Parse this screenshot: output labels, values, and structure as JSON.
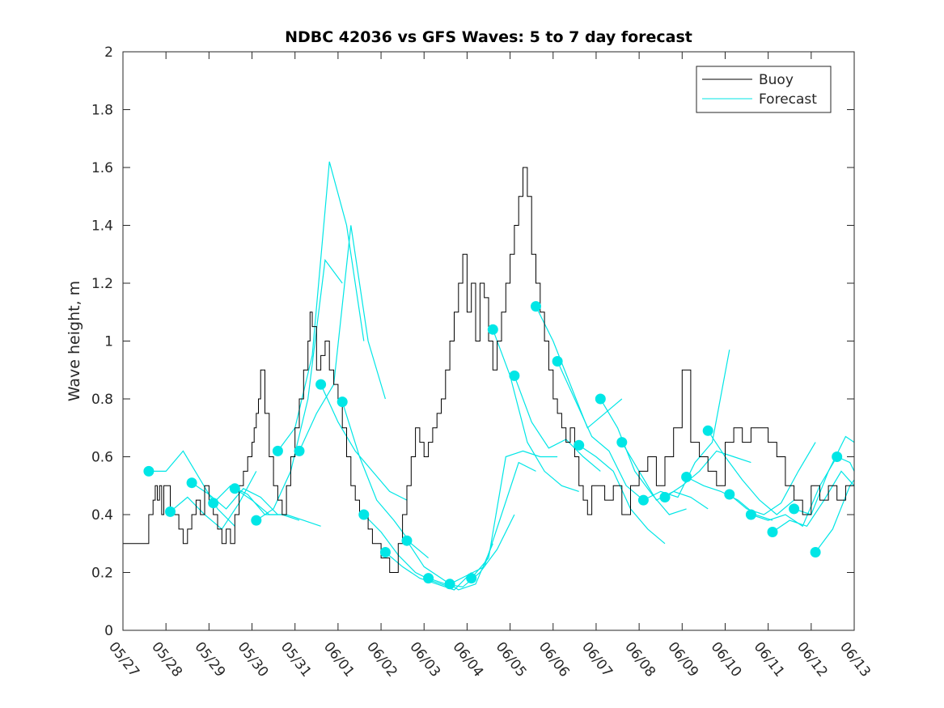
{
  "chart_data": {
    "type": "line",
    "title": "NDBC 42036 vs GFS Waves: 5 to 7 day forecast",
    "xlabel": "",
    "ylabel": "Wave height, m",
    "ylim": [
      0,
      2
    ],
    "yticks": [
      "0",
      "0.2",
      "0.4",
      "0.6",
      "0.8",
      "1",
      "1.2",
      "1.4",
      "1.6",
      "1.8",
      "2"
    ],
    "xticks": [
      "05/27",
      "05/28",
      "05/29",
      "05/30",
      "05/31",
      "06/01",
      "06/02",
      "06/03",
      "06/04",
      "06/05",
      "06/06",
      "06/07",
      "06/08",
      "06/09",
      "06/10",
      "06/11",
      "06/12",
      "06/13"
    ],
    "legend": {
      "placement": "top-right",
      "entries": [
        "Buoy",
        "Forecast"
      ]
    },
    "colors": {
      "buoy": "#000000",
      "forecast": "#00e6e6"
    },
    "buoy": {
      "name": "Buoy",
      "x": [
        0,
        0.55,
        0.6,
        0.7,
        0.75,
        0.8,
        0.85,
        0.9,
        0.95,
        1.0,
        1.1,
        1.2,
        1.3,
        1.4,
        1.5,
        1.6,
        1.7,
        1.8,
        1.9,
        2.0,
        2.1,
        2.2,
        2.3,
        2.4,
        2.5,
        2.6,
        2.7,
        2.8,
        2.9,
        3.0,
        3.05,
        3.1,
        3.15,
        3.2,
        3.3,
        3.4,
        3.5,
        3.6,
        3.7,
        3.8,
        3.9,
        4.0,
        4.1,
        4.2,
        4.3,
        4.35,
        4.4,
        4.5,
        4.6,
        4.7,
        4.8,
        4.9,
        5.0,
        5.1,
        5.2,
        5.3,
        5.4,
        5.5,
        5.6,
        5.7,
        5.8,
        6.0,
        6.2,
        6.4,
        6.5,
        6.6,
        6.7,
        6.8,
        6.9,
        7.0,
        7.1,
        7.2,
        7.3,
        7.4,
        7.5,
        7.6,
        7.7,
        7.8,
        7.9,
        8.0,
        8.1,
        8.2,
        8.3,
        8.4,
        8.5,
        8.6,
        8.7,
        8.8,
        8.9,
        9.0,
        9.1,
        9.2,
        9.3,
        9.4,
        9.5,
        9.6,
        9.7,
        9.8,
        9.9,
        10.0,
        10.1,
        10.2,
        10.3,
        10.4,
        10.5,
        10.6,
        10.7,
        10.8,
        10.9,
        11.0,
        11.2,
        11.4,
        11.6,
        11.8,
        12.0,
        12.2,
        12.4,
        12.6,
        12.8,
        13.0,
        13.2,
        13.4,
        13.6,
        13.8,
        14.0,
        14.2,
        14.4,
        14.6,
        14.8,
        15.0,
        15.2,
        15.4,
        15.6,
        15.8,
        16.0,
        16.2,
        16.4,
        16.6,
        16.8,
        17.0
      ],
      "y": [
        0.3,
        0.3,
        0.4,
        0.45,
        0.5,
        0.45,
        0.5,
        0.4,
        0.5,
        0.5,
        0.4,
        0.4,
        0.35,
        0.3,
        0.35,
        0.4,
        0.45,
        0.4,
        0.5,
        0.45,
        0.4,
        0.35,
        0.3,
        0.35,
        0.3,
        0.4,
        0.5,
        0.55,
        0.6,
        0.65,
        0.7,
        0.75,
        0.8,
        0.9,
        0.75,
        0.6,
        0.5,
        0.45,
        0.4,
        0.5,
        0.6,
        0.7,
        0.8,
        0.9,
        1.0,
        1.1,
        1.05,
        0.9,
        0.95,
        1.0,
        0.9,
        0.85,
        0.8,
        0.7,
        0.6,
        0.5,
        0.45,
        0.4,
        0.4,
        0.35,
        0.3,
        0.25,
        0.2,
        0.3,
        0.4,
        0.5,
        0.6,
        0.7,
        0.65,
        0.6,
        0.65,
        0.7,
        0.75,
        0.8,
        0.9,
        1.0,
        1.1,
        1.2,
        1.3,
        1.1,
        1.2,
        1.0,
        1.2,
        1.15,
        1.0,
        0.9,
        1.0,
        1.1,
        1.2,
        1.3,
        1.4,
        1.5,
        1.6,
        1.5,
        1.3,
        1.2,
        1.1,
        1.0,
        0.9,
        0.8,
        0.75,
        0.7,
        0.65,
        0.7,
        0.6,
        0.5,
        0.45,
        0.4,
        0.5,
        0.5,
        0.45,
        0.5,
        0.4,
        0.5,
        0.55,
        0.6,
        0.5,
        0.6,
        0.7,
        0.9,
        0.65,
        0.6,
        0.55,
        0.5,
        0.65,
        0.7,
        0.65,
        0.7,
        0.7,
        0.65,
        0.6,
        0.5,
        0.45,
        0.4,
        0.5,
        0.45,
        0.5,
        0.45,
        0.5,
        0.55
      ]
    },
    "forecast_series": [
      {
        "x": [
          0.6,
          1.0,
          1.4,
          1.8,
          2.2,
          2.6
        ],
        "y": [
          0.55,
          0.55,
          0.62,
          0.52,
          0.42,
          0.36
        ]
      },
      {
        "x": [
          1.1,
          1.5,
          1.9,
          2.3,
          2.7,
          3.1
        ],
        "y": [
          0.41,
          0.46,
          0.4,
          0.35,
          0.44,
          0.55
        ]
      },
      {
        "x": [
          1.6,
          2.0,
          2.4,
          2.8,
          3.2,
          3.6
        ],
        "y": [
          0.51,
          0.47,
          0.42,
          0.49,
          0.46,
          0.4
        ]
      },
      {
        "x": [
          2.1,
          2.5,
          2.9,
          3.3,
          3.7,
          4.1
        ],
        "y": [
          0.44,
          0.5,
          0.47,
          0.4,
          0.4,
          0.38
        ]
      },
      {
        "x": [
          2.6,
          3.0,
          3.4,
          3.8,
          4.2,
          4.6
        ],
        "y": [
          0.49,
          0.45,
          0.4,
          0.4,
          0.38,
          0.36
        ]
      },
      {
        "x": [
          3.1,
          3.5,
          3.9,
          4.3,
          4.7,
          5.1
        ],
        "y": [
          0.38,
          0.42,
          0.55,
          0.8,
          1.28,
          1.2
        ]
      },
      {
        "x": [
          3.6,
          4.0,
          4.4,
          4.8,
          5.2,
          5.6
        ],
        "y": [
          0.62,
          0.7,
          0.95,
          1.62,
          1.4,
          1.0
        ]
      },
      {
        "x": [
          4.1,
          4.5,
          4.9,
          5.3,
          5.7,
          6.1
        ],
        "y": [
          0.62,
          0.75,
          0.85,
          1.4,
          1.0,
          0.8
        ]
      },
      {
        "x": [
          4.6,
          5.0,
          5.4,
          5.8,
          6.2,
          6.6
        ],
        "y": [
          0.85,
          0.72,
          0.62,
          0.55,
          0.48,
          0.45
        ]
      },
      {
        "x": [
          5.1,
          5.5,
          5.9,
          6.3,
          6.7,
          7.1
        ],
        "y": [
          0.79,
          0.6,
          0.45,
          0.38,
          0.3,
          0.25
        ]
      },
      {
        "x": [
          5.6,
          6.0,
          6.4,
          6.8,
          7.2,
          7.6
        ],
        "y": [
          0.4,
          0.34,
          0.26,
          0.2,
          0.17,
          0.15
        ]
      },
      {
        "x": [
          6.1,
          6.5,
          6.9,
          7.3,
          7.7,
          8.1
        ],
        "y": [
          0.27,
          0.22,
          0.18,
          0.16,
          0.14,
          0.2
        ]
      },
      {
        "x": [
          6.6,
          7.0,
          7.4,
          7.8,
          8.2,
          8.6
        ],
        "y": [
          0.31,
          0.22,
          0.18,
          0.14,
          0.16,
          0.3
        ]
      },
      {
        "x": [
          7.1,
          7.5,
          7.9,
          8.3,
          8.7,
          9.1
        ],
        "y": [
          0.18,
          0.16,
          0.15,
          0.2,
          0.28,
          0.4
        ]
      },
      {
        "x": [
          7.6,
          8.0,
          8.4,
          8.8,
          9.2,
          9.6
        ],
        "y": [
          0.16,
          0.19,
          0.22,
          0.4,
          0.58,
          0.55
        ]
      },
      {
        "x": [
          8.1,
          8.5,
          8.9,
          9.3,
          9.7,
          10.1
        ],
        "y": [
          0.18,
          0.25,
          0.6,
          0.62,
          0.6,
          0.6
        ]
      },
      {
        "x": [
          8.6,
          9.0,
          9.4,
          9.8,
          10.2,
          10.6
        ],
        "y": [
          1.04,
          0.88,
          0.65,
          0.55,
          0.5,
          0.48
        ]
      },
      {
        "x": [
          9.1,
          9.5,
          9.9,
          10.3,
          10.7,
          11.1
        ],
        "y": [
          0.88,
          0.72,
          0.63,
          0.66,
          0.6,
          0.55
        ]
      },
      {
        "x": [
          9.6,
          10.0,
          10.4,
          10.8,
          11.2,
          11.6
        ],
        "y": [
          1.12,
          1.0,
          0.85,
          0.7,
          0.75,
          0.8
        ]
      },
      {
        "x": [
          10.1,
          10.5,
          10.9,
          11.3,
          11.7,
          12.1
        ],
        "y": [
          0.93,
          0.8,
          0.67,
          0.62,
          0.5,
          0.45
        ]
      },
      {
        "x": [
          10.6,
          11.0,
          11.4,
          11.8,
          12.2,
          12.6
        ],
        "y": [
          0.64,
          0.6,
          0.55,
          0.42,
          0.35,
          0.3
        ]
      },
      {
        "x": [
          11.1,
          11.5,
          11.9,
          12.3,
          12.7,
          13.1
        ],
        "y": [
          0.8,
          0.7,
          0.55,
          0.47,
          0.4,
          0.42
        ]
      },
      {
        "x": [
          11.6,
          12.0,
          12.4,
          12.8,
          13.2,
          13.6
        ],
        "y": [
          0.65,
          0.55,
          0.45,
          0.48,
          0.46,
          0.42
        ]
      },
      {
        "x": [
          12.1,
          12.5,
          12.9,
          13.3,
          13.7,
          14.1
        ],
        "y": [
          0.45,
          0.48,
          0.46,
          0.58,
          0.65,
          0.97
        ]
      },
      {
        "x": [
          12.6,
          13.0,
          13.4,
          13.8,
          14.2,
          14.6
        ],
        "y": [
          0.46,
          0.5,
          0.55,
          0.62,
          0.6,
          0.58
        ]
      },
      {
        "x": [
          13.1,
          13.5,
          13.9,
          14.3,
          14.7,
          15.1
        ],
        "y": [
          0.53,
          0.5,
          0.48,
          0.45,
          0.4,
          0.38
        ]
      },
      {
        "x": [
          13.6,
          14.0,
          14.4,
          14.8,
          15.2,
          15.6
        ],
        "y": [
          0.69,
          0.6,
          0.52,
          0.45,
          0.4,
          0.45
        ]
      },
      {
        "x": [
          14.1,
          14.5,
          14.9,
          15.3,
          15.7,
          16.1
        ],
        "y": [
          0.47,
          0.42,
          0.4,
          0.44,
          0.55,
          0.65
        ]
      },
      {
        "x": [
          14.6,
          15.0,
          15.4,
          15.8,
          16.2,
          16.6
        ],
        "y": [
          0.4,
          0.38,
          0.4,
          0.36,
          0.5,
          0.6
        ]
      },
      {
        "x": [
          15.1,
          15.5,
          15.9,
          16.3,
          16.7,
          17.0
        ],
        "y": [
          0.34,
          0.38,
          0.36,
          0.45,
          0.55,
          0.5
        ]
      },
      {
        "x": [
          15.6,
          16.0,
          16.4,
          16.8,
          17.0
        ],
        "y": [
          0.42,
          0.4,
          0.55,
          0.67,
          0.65
        ]
      },
      {
        "x": [
          16.1,
          16.5,
          16.9,
          17.0
        ],
        "y": [
          0.27,
          0.35,
          0.5,
          0.52
        ]
      },
      {
        "x": [
          16.6,
          16.9,
          17.0
        ],
        "y": [
          0.6,
          0.58,
          0.55
        ]
      }
    ],
    "markers": {
      "x": [
        0.6,
        1.1,
        1.6,
        2.1,
        2.6,
        3.1,
        3.6,
        4.1,
        4.6,
        5.1,
        5.6,
        6.1,
        6.6,
        7.1,
        7.6,
        8.1,
        8.6,
        9.1,
        9.6,
        10.1,
        10.6,
        11.1,
        11.6,
        12.1,
        12.6,
        13.1,
        13.6,
        14.1,
        14.6,
        15.1,
        15.6,
        16.1,
        16.6
      ],
      "y": [
        0.55,
        0.41,
        0.51,
        0.44,
        0.49,
        0.38,
        0.62,
        0.62,
        0.85,
        0.79,
        0.4,
        0.27,
        0.31,
        0.18,
        0.16,
        0.18,
        1.04,
        0.88,
        1.12,
        0.93,
        0.64,
        0.8,
        0.65,
        0.45,
        0.46,
        0.53,
        0.69,
        0.47,
        0.4,
        0.34,
        0.42,
        0.27,
        0.6
      ]
    }
  }
}
